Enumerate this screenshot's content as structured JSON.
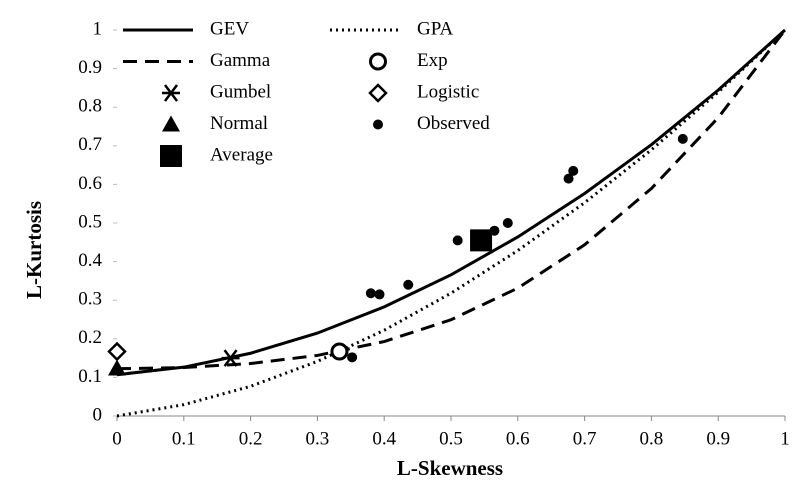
{
  "chart_data": {
    "type": "scatter",
    "x_label": "L-Skewness",
    "y_label": "L-Kurtosis",
    "xlim": [
      0,
      1
    ],
    "ylim": [
      0,
      1
    ],
    "xticks": [
      0,
      0.1,
      0.2,
      0.3,
      0.4,
      0.5,
      0.6,
      0.7,
      0.8,
      0.9,
      1
    ],
    "yticks": [
      0,
      0.1,
      0.2,
      0.3,
      0.4,
      0.5,
      0.6,
      0.7,
      0.8,
      0.9,
      1
    ],
    "series": [
      {
        "name": "GEV",
        "color": "#000000",
        "line": "solid",
        "x": [
          0,
          0.1,
          0.2,
          0.3,
          0.4,
          0.5,
          0.6,
          0.7,
          0.8,
          0.9,
          1
        ],
        "values": [
          0.107,
          0.1265,
          0.1626,
          0.2148,
          0.2827,
          0.3658,
          0.4638,
          0.5765,
          0.7029,
          0.8443,
          1
        ]
      },
      {
        "name": "GPA",
        "color": "#000000",
        "line": "dotted",
        "x": [
          0,
          0.1,
          0.2,
          0.3,
          0.4,
          0.5,
          0.6,
          0.7,
          0.8,
          0.9,
          1
        ],
        "values": [
          0,
          0.0294,
          0.0769,
          0.1415,
          0.2222,
          0.3182,
          0.4286,
          0.5526,
          0.6897,
          0.839,
          1
        ]
      },
      {
        "name": "Gamma",
        "color": "#000000",
        "line": "dashed",
        "x": [
          0,
          0.1,
          0.2,
          0.3,
          0.4,
          0.5,
          0.6,
          0.7,
          0.8,
          0.9,
          1
        ],
        "values": [
          0.1224,
          0.1255,
          0.136,
          0.1569,
          0.1929,
          0.2493,
          0.3314,
          0.4435,
          0.5894,
          0.7728,
          1
        ]
      },
      {
        "name": "Exp",
        "color": "#000000",
        "marker": "circle-open",
        "x": [
          0.333
        ],
        "values": [
          0.167
        ]
      },
      {
        "name": "Gumbel",
        "color": "#000000",
        "marker": "asterisk",
        "x": [
          0.17
        ],
        "values": [
          0.15
        ]
      },
      {
        "name": "Logistic",
        "color": "#000000",
        "marker": "diamond-open",
        "x": [
          0
        ],
        "values": [
          0.167
        ]
      },
      {
        "name": "Normal",
        "color": "#000000",
        "marker": "triangle",
        "x": [
          0
        ],
        "values": [
          0.123
        ]
      },
      {
        "name": "Observed",
        "color": "#000000",
        "marker": "circle",
        "x": [
          0.352,
          0.38,
          0.393,
          0.436,
          0.51,
          0.565,
          0.585,
          0.676,
          0.683,
          0.847
        ],
        "values": [
          0.152,
          0.318,
          0.315,
          0.34,
          0.455,
          0.48,
          0.5,
          0.615,
          0.635,
          0.718
        ]
      },
      {
        "name": "Average",
        "color": "#000000",
        "marker": "square",
        "x": [
          0.545
        ],
        "values": [
          0.455
        ]
      }
    ]
  }
}
